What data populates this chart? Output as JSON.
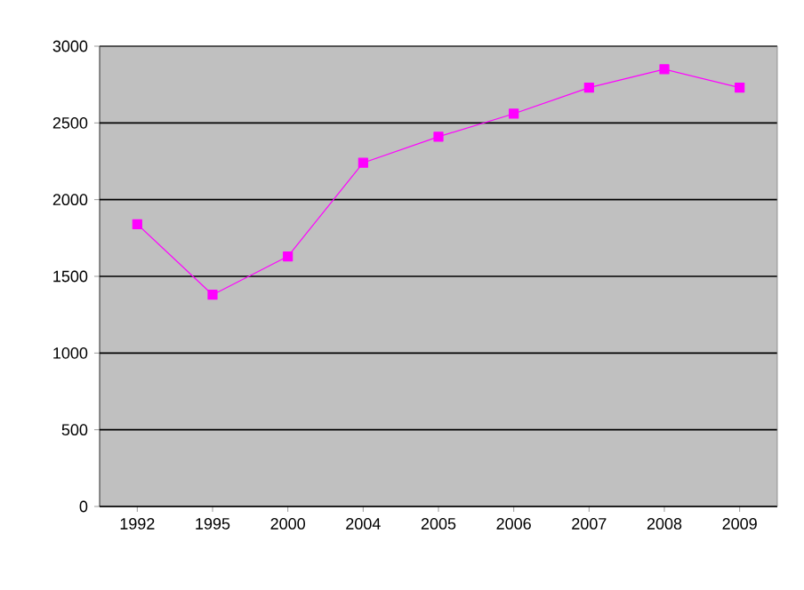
{
  "chart_data": {
    "type": "line",
    "categories": [
      "1992",
      "1995",
      "2000",
      "2004",
      "2005",
      "2006",
      "2007",
      "2008",
      "2009"
    ],
    "series": [
      {
        "color": "#ff00ff",
        "values": [
          1840,
          1380,
          1630,
          2240,
          2410,
          2560,
          2730,
          2850,
          2730
        ]
      }
    ],
    "ylim": [
      0,
      3000
    ],
    "yticks": [
      0,
      500,
      1000,
      1500,
      2000,
      2500,
      3000
    ],
    "grid": "y",
    "marker": "square",
    "line_style": "solid"
  }
}
